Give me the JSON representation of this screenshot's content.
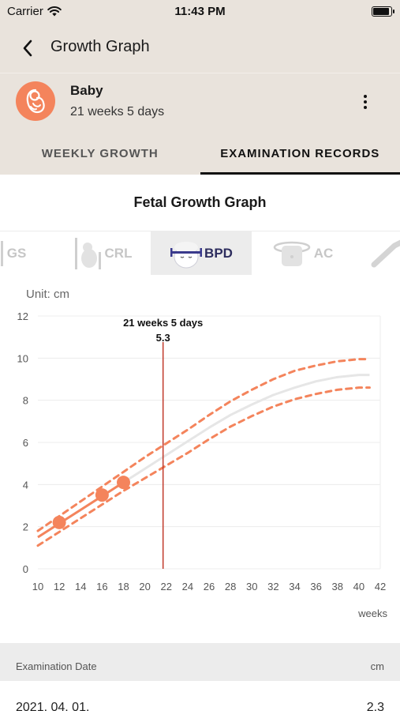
{
  "status_bar": {
    "carrier": "Carrier",
    "time": "11:43 PM",
    "battery_level": 0.95
  },
  "nav": {
    "title": "Growth Graph"
  },
  "profile": {
    "name": "Baby",
    "age": "21 weeks 5 days"
  },
  "tabs": [
    {
      "label": "WEEKLY GROWTH",
      "active": false
    },
    {
      "label": "EXAMINATION RECORDS",
      "active": true
    }
  ],
  "graph": {
    "title": "Fetal Growth Graph",
    "metrics": [
      {
        "id": "gs",
        "label": "GS",
        "active": false
      },
      {
        "id": "crl",
        "label": "CRL",
        "active": false
      },
      {
        "id": "bpd",
        "label": "BPD",
        "active": true
      },
      {
        "id": "ac",
        "label": "AC",
        "active": false
      },
      {
        "id": "fl",
        "label": "",
        "active": false
      }
    ],
    "unit_label": "Unit: cm",
    "x_unit_label": "weeks"
  },
  "colors": {
    "accent": "#f4845c",
    "cursor_line": "#c0392b",
    "median": "#e6e6e6",
    "active_metric_text": "#2d2d5e"
  },
  "chart_data": {
    "type": "line",
    "xlim": [
      10,
      42
    ],
    "ylim": [
      0,
      12
    ],
    "x_ticks": [
      10,
      12,
      14,
      16,
      18,
      20,
      22,
      24,
      26,
      28,
      30,
      32,
      34,
      36,
      38,
      40,
      42
    ],
    "y_ticks": [
      0,
      2,
      4,
      6,
      8,
      10,
      12
    ],
    "grid": true,
    "series": [
      {
        "style": "solid-light",
        "x": [
          10,
          12,
          14,
          16,
          18,
          20,
          22,
          24,
          26,
          28,
          30,
          32,
          34,
          36,
          38,
          40,
          41
        ],
        "y": [
          1.5,
          2.15,
          2.8,
          3.45,
          4.1,
          4.75,
          5.4,
          6.05,
          6.7,
          7.3,
          7.8,
          8.25,
          8.6,
          8.9,
          9.1,
          9.2,
          9.2
        ]
      },
      {
        "style": "dashed-upper",
        "x": [
          10,
          12,
          14,
          16,
          18,
          20,
          22,
          24,
          26,
          28,
          30,
          32,
          34,
          36,
          38,
          40,
          41
        ],
        "y": [
          1.8,
          2.5,
          3.2,
          3.9,
          4.6,
          5.3,
          5.95,
          6.6,
          7.3,
          7.95,
          8.5,
          9.0,
          9.4,
          9.65,
          9.85,
          9.95,
          9.95
        ]
      },
      {
        "style": "dashed-lower",
        "x": [
          10,
          12,
          14,
          16,
          18,
          20,
          22,
          24,
          26,
          28,
          30,
          32,
          34,
          36,
          38,
          40,
          41
        ],
        "y": [
          1.1,
          1.75,
          2.4,
          3.05,
          3.7,
          4.3,
          4.9,
          5.5,
          6.15,
          6.75,
          7.25,
          7.7,
          8.05,
          8.3,
          8.5,
          8.6,
          8.6
        ]
      },
      {
        "style": "measured",
        "x": [
          12,
          16,
          18
        ],
        "y": [
          2.2,
          3.5,
          4.1
        ]
      }
    ],
    "marker": {
      "x": 21.7,
      "label": "21 weeks 5 days",
      "value": "5.3"
    }
  },
  "table": {
    "header_date": "Examination Date",
    "header_unit": "cm",
    "rows": [
      {
        "date": "2021. 04. 01.",
        "value": "2.3"
      }
    ]
  }
}
